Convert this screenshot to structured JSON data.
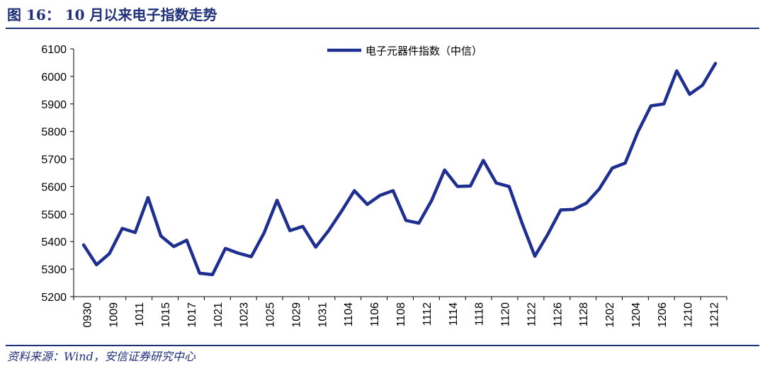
{
  "header": {
    "title": "图 16： 10 月以来电子指数走势"
  },
  "footer": {
    "source": "资料来源：Wind，安信证券研究中心"
  },
  "colors": {
    "series": "#1f2f8f",
    "rule": "#1f2f7a",
    "axis": "#000000"
  },
  "chart_data": {
    "type": "line",
    "title": "",
    "xlabel": "",
    "ylabel": "",
    "ylim": [
      5200,
      6100
    ],
    "yticks": [
      5200,
      5300,
      5400,
      5500,
      5600,
      5700,
      5800,
      5900,
      6000,
      6100
    ],
    "xtick_labels": [
      "0930",
      "1009",
      "1011",
      "1015",
      "1017",
      "1021",
      "1023",
      "1025",
      "1029",
      "1031",
      "1104",
      "1106",
      "1108",
      "1112",
      "1114",
      "1118",
      "1120",
      "1122",
      "1126",
      "1128",
      "1202",
      "1204",
      "1206",
      "1210",
      "1212"
    ],
    "legend_position": "top-center",
    "grid": false,
    "series": [
      {
        "name": "电子元器件指数（中信）",
        "values": [
          5388,
          5316,
          5356,
          5448,
          5433,
          5560,
          5420,
          5382,
          5405,
          5285,
          5280,
          5375,
          5358,
          5345,
          5432,
          5550,
          5440,
          5455,
          5380,
          5440,
          5510,
          5585,
          5535,
          5568,
          5585,
          5477,
          5467,
          5550,
          5660,
          5600,
          5602,
          5695,
          5613,
          5600,
          5468,
          5347,
          5426,
          5515,
          5517,
          5540,
          5592,
          5667,
          5685,
          5800,
          5893,
          5900,
          6020,
          5935,
          5968,
          6047
        ]
      }
    ]
  }
}
